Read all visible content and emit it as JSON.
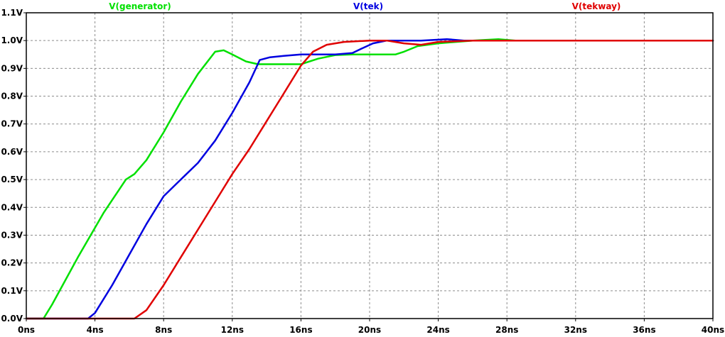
{
  "chart_data": {
    "type": "line",
    "title": "",
    "xlabel": "",
    "ylabel": "",
    "xlim": [
      0,
      40
    ],
    "ylim": [
      0,
      1.1
    ],
    "x_unit": "ns",
    "y_unit": "V",
    "grid": true,
    "legend_placement": "top",
    "x_ticks": [
      0,
      4,
      8,
      12,
      16,
      20,
      24,
      28,
      32,
      36,
      40
    ],
    "x_tick_labels": [
      "0ns",
      "4ns",
      "8ns",
      "12ns",
      "16ns",
      "20ns",
      "24ns",
      "28ns",
      "32ns",
      "36ns",
      "40ns"
    ],
    "y_ticks": [
      0,
      0.1,
      0.2,
      0.3,
      0.4,
      0.5,
      0.6,
      0.7,
      0.8,
      0.9,
      1.0,
      1.1
    ],
    "y_tick_labels": [
      "0.0V",
      "0.1V",
      "0.2V",
      "0.3V",
      "0.4V",
      "0.5V",
      "0.6V",
      "0.7V",
      "0.8V",
      "0.9V",
      "1.0V",
      "1.1V"
    ],
    "series": [
      {
        "name": "V(generator)",
        "color": "#00e000",
        "points": [
          [
            0,
            0
          ],
          [
            1,
            0
          ],
          [
            1.5,
            0.05
          ],
          [
            3,
            0.22
          ],
          [
            4.5,
            0.38
          ],
          [
            5.8,
            0.5
          ],
          [
            6.3,
            0.52
          ],
          [
            7,
            0.57
          ],
          [
            8,
            0.67
          ],
          [
            9,
            0.78
          ],
          [
            10,
            0.88
          ],
          [
            11,
            0.96
          ],
          [
            11.5,
            0.965
          ],
          [
            12,
            0.95
          ],
          [
            12.8,
            0.925
          ],
          [
            13.5,
            0.915
          ],
          [
            15,
            0.915
          ],
          [
            16,
            0.915
          ],
          [
            17,
            0.935
          ],
          [
            18,
            0.948
          ],
          [
            19,
            0.95
          ],
          [
            20,
            0.95
          ],
          [
            21.5,
            0.95
          ],
          [
            22,
            0.96
          ],
          [
            22.8,
            0.98
          ],
          [
            24,
            0.99
          ],
          [
            26,
            1.0
          ],
          [
            27.5,
            1.005
          ],
          [
            28.5,
            1.0
          ],
          [
            40,
            1.0
          ]
        ]
      },
      {
        "name": "V(tek)",
        "color": "#0000e0",
        "points": [
          [
            0,
            0
          ],
          [
            3.6,
            0
          ],
          [
            4,
            0.02
          ],
          [
            5,
            0.12
          ],
          [
            6,
            0.23
          ],
          [
            7,
            0.34
          ],
          [
            8,
            0.44
          ],
          [
            9,
            0.5
          ],
          [
            10,
            0.56
          ],
          [
            11,
            0.64
          ],
          [
            12,
            0.74
          ],
          [
            13,
            0.85
          ],
          [
            13.6,
            0.93
          ],
          [
            14.2,
            0.94
          ],
          [
            15,
            0.945
          ],
          [
            16,
            0.95
          ],
          [
            18,
            0.95
          ],
          [
            19,
            0.955
          ],
          [
            19.5,
            0.97
          ],
          [
            20.2,
            0.99
          ],
          [
            21,
            1.0
          ],
          [
            22,
            1.0
          ],
          [
            23,
            1.0
          ],
          [
            24.5,
            1.005
          ],
          [
            25.5,
            1.0
          ],
          [
            40,
            1.0
          ]
        ]
      },
      {
        "name": "V(tekway)",
        "color": "#e00000",
        "points": [
          [
            0,
            0
          ],
          [
            6.3,
            0
          ],
          [
            7,
            0.03
          ],
          [
            8,
            0.12
          ],
          [
            9,
            0.22
          ],
          [
            10,
            0.32
          ],
          [
            11,
            0.42
          ],
          [
            12,
            0.52
          ],
          [
            13,
            0.61
          ],
          [
            14,
            0.71
          ],
          [
            15,
            0.81
          ],
          [
            16,
            0.91
          ],
          [
            16.7,
            0.96
          ],
          [
            17.5,
            0.985
          ],
          [
            18.5,
            0.995
          ],
          [
            20,
            1.0
          ],
          [
            21,
            1.0
          ],
          [
            22,
            0.99
          ],
          [
            23,
            0.985
          ],
          [
            24,
            0.995
          ],
          [
            26,
            1.0
          ],
          [
            40,
            1.0
          ]
        ]
      }
    ]
  }
}
